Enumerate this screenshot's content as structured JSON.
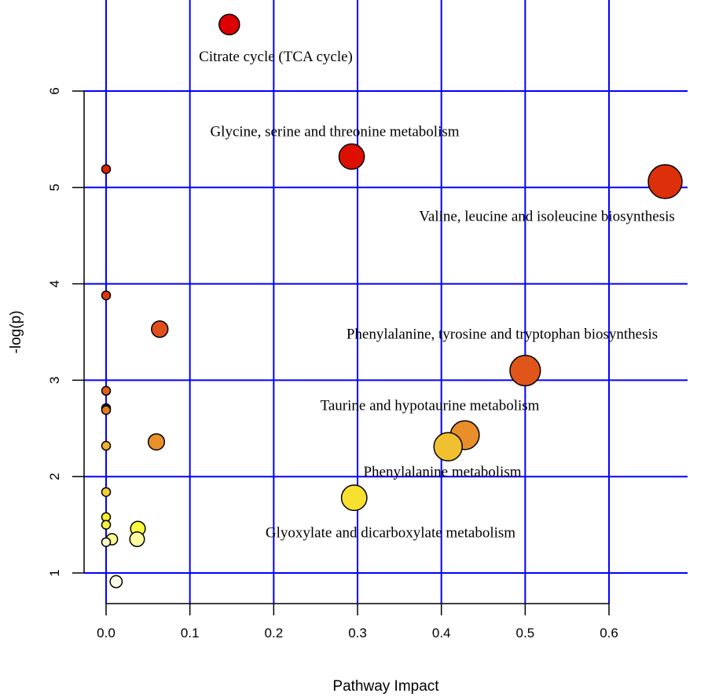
{
  "chart_data": {
    "type": "scatter",
    "title": "",
    "xlabel": "Pathway Impact",
    "ylabel": "-log(p)",
    "xlim": [
      -0.03,
      0.71
    ],
    "ylim": [
      0.7,
      6.9
    ],
    "grid": true,
    "xticks": [
      0.0,
      0.1,
      0.2,
      0.3,
      0.4,
      0.5,
      0.6
    ],
    "xtick_labels": [
      "0.0",
      "0.1",
      "0.2",
      "0.3",
      "0.4",
      "0.5",
      "0.6"
    ],
    "yticks": [
      1,
      2,
      3,
      4,
      5,
      6
    ],
    "ytick_labels": [
      "1",
      "2",
      "3",
      "4",
      "5",
      "6"
    ],
    "colors": {
      "grid": "#0000FF",
      "axis": "#000000"
    },
    "points": [
      {
        "x": 0.147,
        "y": 6.69,
        "color": "#DD0000",
        "label": "Citrate cycle (TCA cycle)",
        "label_dx": 0.0,
        "label_dy": 0.33
      },
      {
        "x": 0.293,
        "y": 5.32,
        "color": "#DD1000",
        "label": "Glycine, serine and threonine metabolism",
        "label_dx": 0.0,
        "label_dy": -0.26
      },
      {
        "x": 0.667,
        "y": 5.06,
        "color": "#DD300A",
        "label": "Valine, leucine and isoleucine biosynthesis",
        "label_dx": -0.0,
        "label_dy": 0.36
      },
      {
        "x": 0.5,
        "y": 3.1,
        "color": "#E0561A",
        "label": "Phenylalanine, tyrosine and tryptophan biosynthesis",
        "label_dx": 0.0,
        "label_dy": -0.38
      },
      {
        "x": 0.428,
        "y": 2.43,
        "color": "#E88E2A",
        "label": "Taurine and hypotaurine metabolism",
        "label_dx": -0.0,
        "label_dy": -0.31
      },
      {
        "x": 0.408,
        "y": 2.31,
        "color": "#F0C030",
        "label": "Phenylalanine metabolism",
        "label_dx": 0.0,
        "label_dy": 0.26
      },
      {
        "x": 0.296,
        "y": 1.78,
        "color": "#F8E030",
        "label": "Glyoxylate and dicarboxylate metabolism",
        "label_dx": 0.0,
        "label_dy": 0.36
      },
      {
        "x": 0.064,
        "y": 3.53,
        "color": "#E04E1E",
        "label": ""
      },
      {
        "x": 0.06,
        "y": 2.36,
        "color": "#E8902A",
        "label": ""
      },
      {
        "x": 0.0,
        "y": 5.19,
        "color": "#DD2000",
        "label": ""
      },
      {
        "x": 0.0,
        "y": 3.88,
        "color": "#E0380A",
        "label": ""
      },
      {
        "x": 0.0,
        "y": 2.89,
        "color": "#E06020",
        "label": ""
      },
      {
        "x": 0.0,
        "y": 2.71,
        "color": "#222222",
        "label": ""
      },
      {
        "x": 0.0,
        "y": 2.69,
        "color": "#E07C22",
        "label": ""
      },
      {
        "x": 0.0,
        "y": 2.32,
        "color": "#F0B030",
        "label": ""
      },
      {
        "x": 0.0,
        "y": 1.84,
        "color": "#F5D030",
        "label": ""
      },
      {
        "x": 0.0,
        "y": 1.58,
        "color": "#FAF030",
        "label": ""
      },
      {
        "x": 0.0,
        "y": 1.5,
        "color": "#FAF040",
        "label": ""
      },
      {
        "x": 0.038,
        "y": 1.46,
        "color": "#FFFF40",
        "label": ""
      },
      {
        "x": 0.037,
        "y": 1.35,
        "color": "#FFFFA0",
        "label": ""
      },
      {
        "x": 0.007,
        "y": 1.35,
        "color": "#FFFF90",
        "label": ""
      },
      {
        "x": 0.0,
        "y": 1.32,
        "color": "#FFFFC8",
        "label": ""
      },
      {
        "x": 0.012,
        "y": 0.91,
        "color": "#FFFFE8",
        "label": ""
      }
    ]
  }
}
